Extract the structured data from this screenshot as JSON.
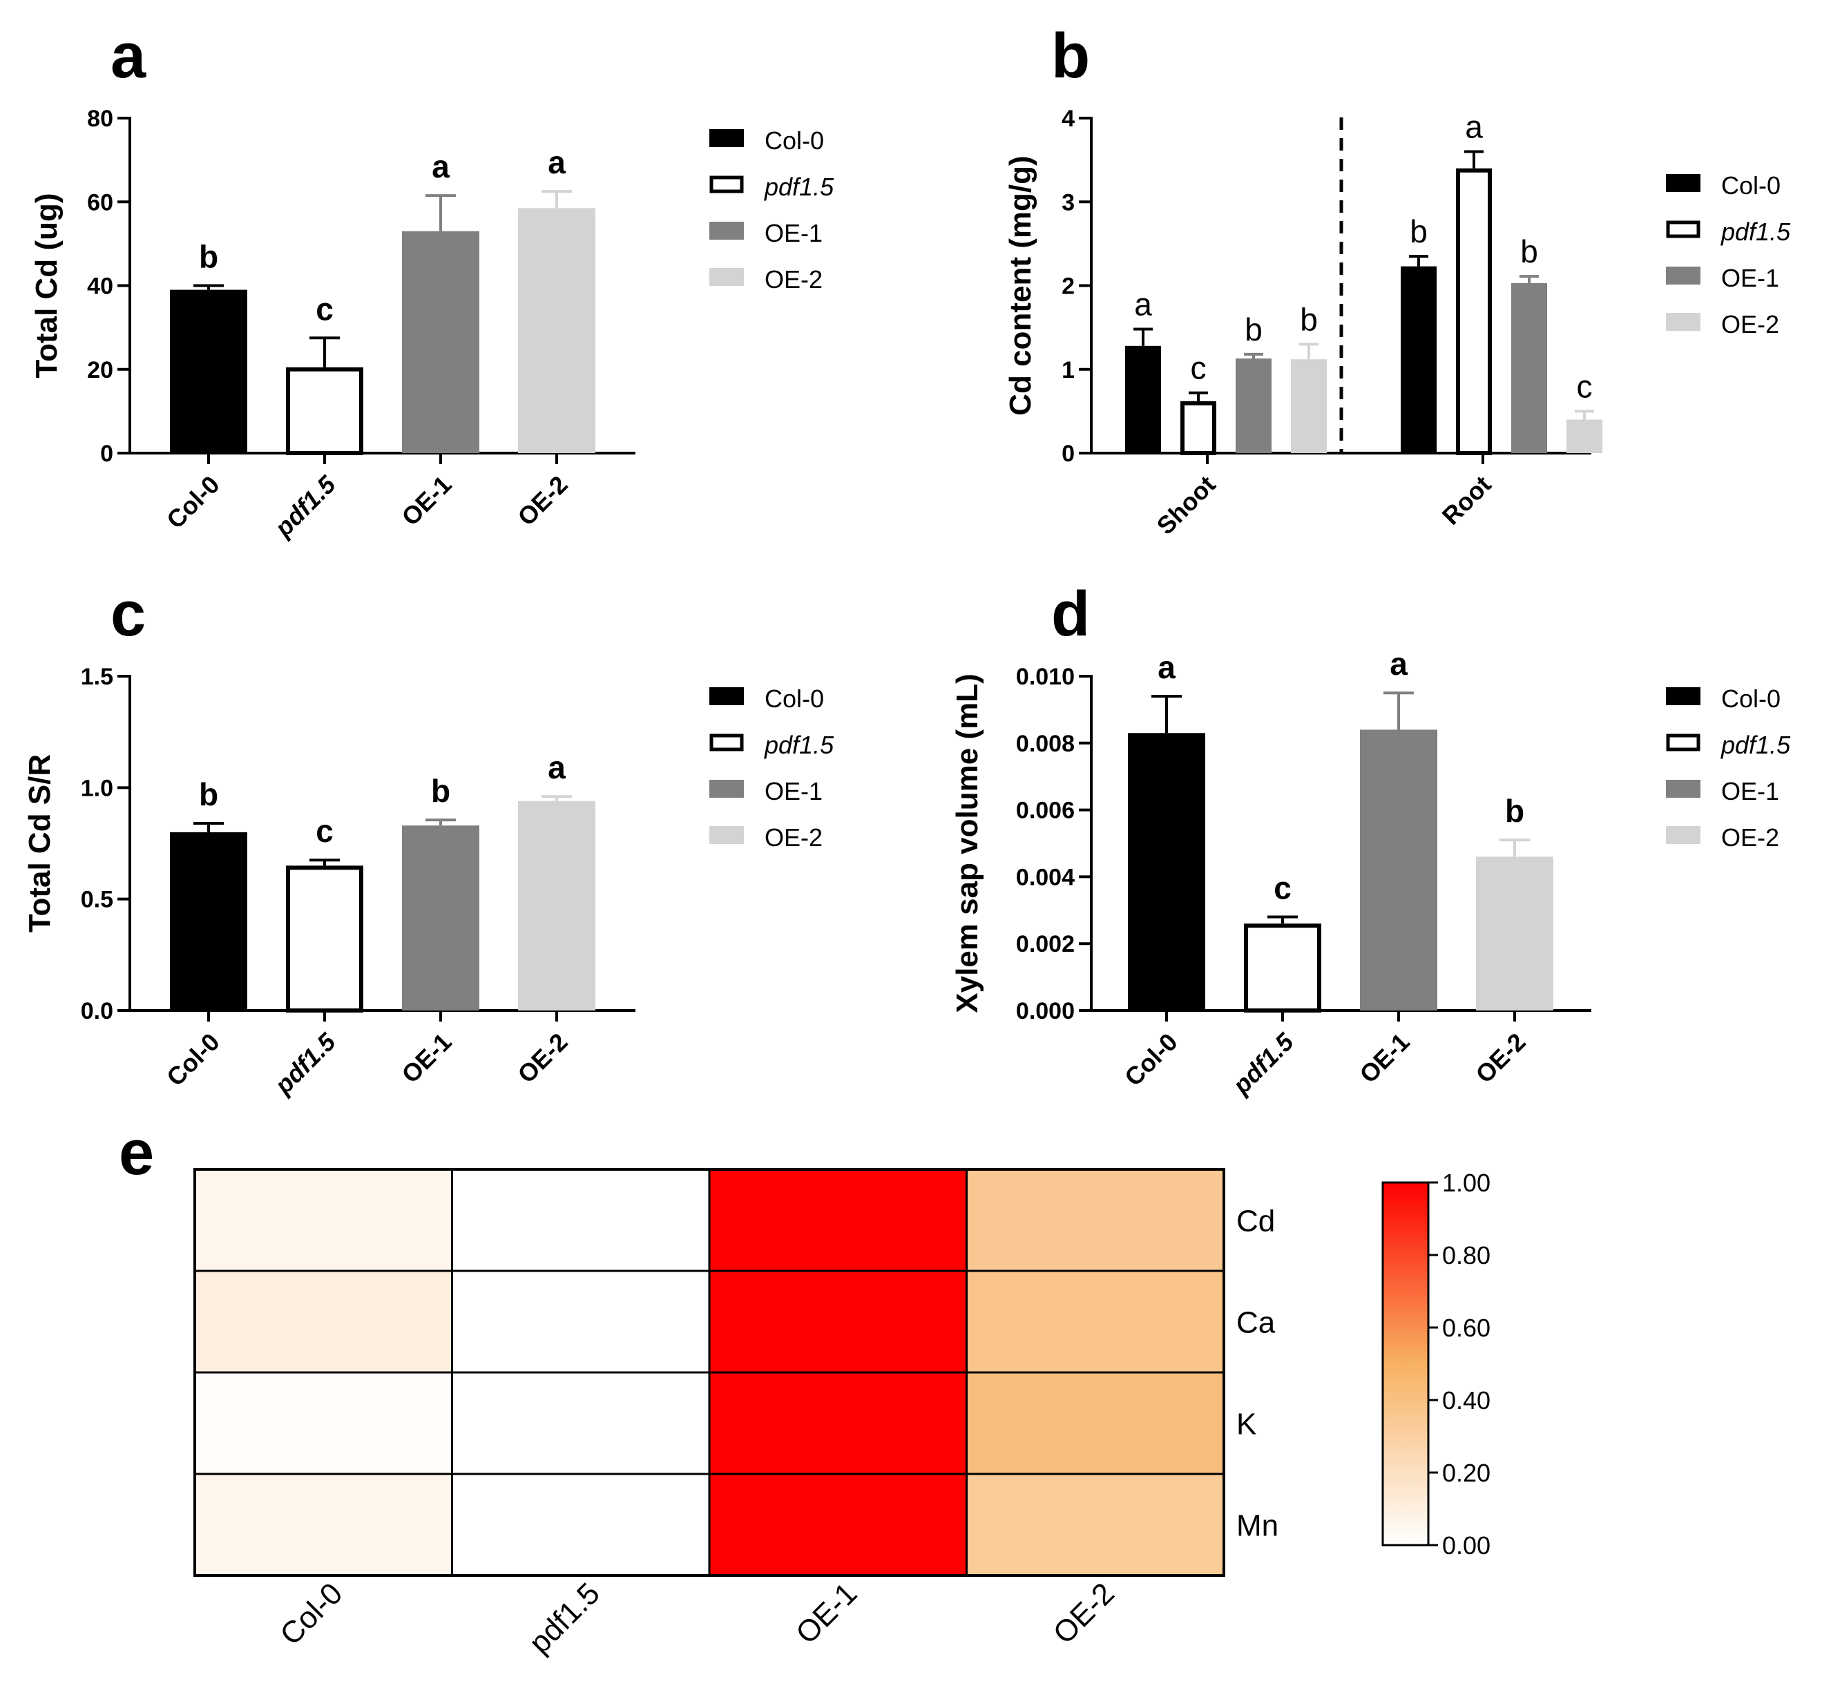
{
  "panels": {
    "a": "a",
    "b": "b",
    "c": "c",
    "d": "d",
    "e": "e"
  },
  "legend": [
    {
      "label": "Col-0",
      "color": "#000000",
      "hollow": false,
      "italic": false
    },
    {
      "label": "pdf1.5",
      "color": "#ffffff",
      "hollow": true,
      "italic": true
    },
    {
      "label": "OE-1",
      "color": "#808080",
      "hollow": false,
      "italic": false
    },
    {
      "label": "OE-2",
      "color": "#d3d3d3",
      "hollow": false,
      "italic": false
    }
  ],
  "chart_data": [
    {
      "id": "a",
      "type": "bar",
      "ylabel": "Total Cd (ug)",
      "categories": [
        "Col-0",
        "pdf1.5",
        "OE-1",
        "OE-2"
      ],
      "values": [
        39,
        20.5,
        53,
        58.5
      ],
      "errors": [
        1,
        7,
        8.5,
        4
      ],
      "letters": [
        "b",
        "c",
        "a",
        "a"
      ],
      "ylim": [
        0,
        80
      ],
      "yticks": [
        "0",
        "20",
        "40",
        "60",
        "80"
      ]
    },
    {
      "id": "b",
      "type": "bar",
      "ylabel": "Cd content (mg/g)",
      "groups": [
        "Shoot",
        "Root"
      ],
      "series": [
        {
          "name": "Col-0",
          "values": [
            1.28,
            2.23
          ],
          "errors": [
            0.2,
            0.12
          ],
          "letters": [
            "a",
            "b"
          ]
        },
        {
          "name": "pdf1.5",
          "values": [
            0.62,
            3.4
          ],
          "errors": [
            0.1,
            0.2
          ],
          "letters": [
            "c",
            "a"
          ]
        },
        {
          "name": "OE-1",
          "values": [
            1.13,
            2.03
          ],
          "errors": [
            0.05,
            0.08
          ],
          "letters": [
            "b",
            "b"
          ]
        },
        {
          "name": "OE-2",
          "values": [
            1.12,
            0.4
          ],
          "errors": [
            0.18,
            0.1
          ],
          "letters": [
            "b",
            "c"
          ]
        }
      ],
      "ylim": [
        0,
        4
      ],
      "yticks": [
        "0",
        "1",
        "2",
        "3",
        "4"
      ]
    },
    {
      "id": "c",
      "type": "bar",
      "ylabel": "Total Cd S/R",
      "categories": [
        "Col-0",
        "pdf1.5",
        "OE-1",
        "OE-2"
      ],
      "values": [
        0.8,
        0.65,
        0.83,
        0.94
      ],
      "errors": [
        0.04,
        0.025,
        0.025,
        0.02
      ],
      "letters": [
        "b",
        "c",
        "b",
        "a"
      ],
      "ylim": [
        0,
        1.5
      ],
      "yticks": [
        "0.0",
        "0.5",
        "1.0",
        "1.5"
      ]
    },
    {
      "id": "d",
      "type": "bar",
      "ylabel": "Xylem sap volume (mL)",
      "categories": [
        "Col-0",
        "pdf1.5",
        "OE-1",
        "OE-2"
      ],
      "values": [
        0.0083,
        0.0026,
        0.0084,
        0.0046
      ],
      "errors": [
        0.0011,
        0.0002,
        0.0011,
        0.0005
      ],
      "letters": [
        "a",
        "c",
        "a",
        "b"
      ],
      "ylim": [
        0,
        0.01
      ],
      "yticks": [
        "0.000",
        "0.002",
        "0.004",
        "0.006",
        "0.008",
        "0.010"
      ]
    },
    {
      "id": "e",
      "type": "heatmap",
      "columns": [
        "Col-0",
        "pdf1.5",
        "OE-1",
        "OE-2"
      ],
      "rows": [
        "Cd",
        "Ca",
        "K",
        "Mn"
      ],
      "values": [
        [
          0.06,
          0.0,
          1.0,
          0.35
        ],
        [
          0.1,
          0.0,
          1.0,
          0.38
        ],
        [
          0.02,
          0.0,
          1.0,
          0.42
        ],
        [
          0.06,
          0.0,
          1.0,
          0.33
        ]
      ],
      "colorbar": {
        "min": 0,
        "max": 1,
        "ticks": [
          "0.00",
          "0.20",
          "0.40",
          "0.60",
          "0.80",
          "1.00"
        ],
        "low_color": "#ffffff",
        "mid_color": "#f7b163",
        "high_color": "#ff0000"
      }
    }
  ]
}
